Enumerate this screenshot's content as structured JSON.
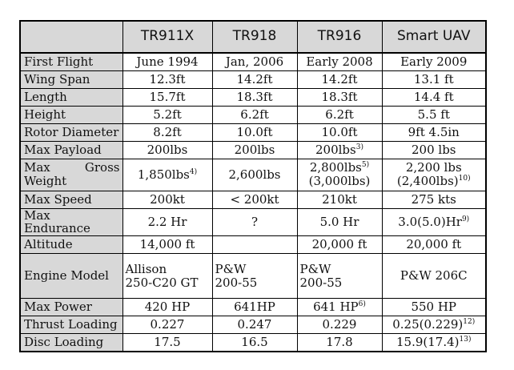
{
  "headers": [
    "",
    "TR911X",
    "TR918",
    "TR916",
    "Smart UAV"
  ],
  "rows": [
    {
      "label": "First Flight",
      "cells": [
        [
          "June 1994"
        ],
        [
          "Jan, 2006"
        ],
        [
          "Early 2008"
        ],
        [
          "Early 2009"
        ]
      ]
    },
    {
      "label": "Wing Span",
      "cells": [
        [
          "12.3ft"
        ],
        [
          "14.2ft"
        ],
        [
          "14.2ft"
        ],
        [
          "13.1 ft"
        ]
      ]
    },
    {
      "label": "Length",
      "cells": [
        [
          "15.7ft"
        ],
        [
          "18.3ft"
        ],
        [
          "18.3ft"
        ],
        [
          "14.4 ft"
        ]
      ]
    },
    {
      "label": "Height",
      "cells": [
        [
          "5.2ft"
        ],
        [
          "6.2ft"
        ],
        [
          "6.2ft"
        ],
        [
          "5.5 ft"
        ]
      ]
    },
    {
      "label": "Rotor Diameter",
      "cells": [
        [
          "8.2ft"
        ],
        [
          "10.0ft"
        ],
        [
          "10.0ft"
        ],
        [
          "9ft 4.5in"
        ]
      ]
    },
    {
      "label": "Max Payload",
      "cells": [
        [
          "200lbs"
        ],
        [
          "200lbs"
        ],
        [
          "200lbs",
          "3)"
        ],
        [
          "200 lbs"
        ]
      ]
    },
    {
      "label": "Max Gross Weight",
      "label_lines": [
        "Max",
        "Gross",
        "Weight"
      ],
      "cells": [
        [
          "1,850lbs",
          "4)"
        ],
        [
          "2,600lbs"
        ],
        [
          "2,800lbs",
          "5)",
          "(3,000lbs)"
        ],
        [
          "2,200 lbs",
          "",
          "(2,400lbs)",
          "10)"
        ]
      ]
    },
    {
      "label": "Max Speed",
      "cells": [
        [
          "200kt"
        ],
        [
          "< 200kt"
        ],
        [
          "210kt"
        ],
        [
          "275 kts"
        ]
      ]
    },
    {
      "label": "Max Endurance",
      "cells": [
        [
          "2.2 Hr"
        ],
        [
          "?"
        ],
        [
          "5.0 Hr"
        ],
        [
          "3.0(5.0)Hr",
          "9)"
        ]
      ]
    },
    {
      "label": "Altitude",
      "cells": [
        [
          "14,000 ft"
        ],
        [
          ""
        ],
        [
          "20,000 ft"
        ],
        [
          "20,000 ft"
        ]
      ]
    },
    {
      "label": "Engine Model",
      "cells": [
        [
          "Allison",
          "",
          "250-C20 GT"
        ],
        [
          "P&W",
          "",
          "200-55"
        ],
        [
          "P&W",
          "",
          "200-55"
        ],
        [
          "P&W 206C"
        ]
      ]
    },
    {
      "label": "Max Power",
      "cells": [
        [
          "420 HP"
        ],
        [
          "641HP"
        ],
        [
          "641 HP",
          "6)"
        ],
        [
          "550 HP"
        ]
      ]
    },
    {
      "label": "Thrust Loading",
      "cells": [
        [
          "0.227"
        ],
        [
          "0.247"
        ],
        [
          "0.229"
        ],
        [
          "0.25(0.229)",
          "12)"
        ]
      ]
    },
    {
      "label": "Disc Loading",
      "cells": [
        [
          "17.5"
        ],
        [
          "16.5"
        ],
        [
          "17.8"
        ],
        [
          "15.9(17.4)",
          "13)"
        ]
      ]
    }
  ]
}
